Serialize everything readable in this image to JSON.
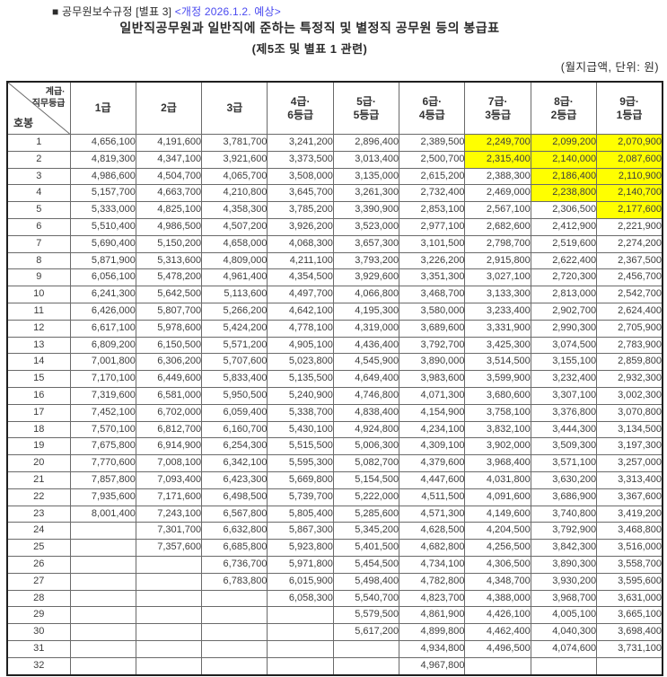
{
  "page": {
    "doc_label": "■ 공무원보수규정 [별표 3] ",
    "revision_note": "<개정 2026.1.2. 예상>",
    "title": "일반직공무원과 일반직에 준하는 특정직 및 별정직 공무원 등의 봉급표",
    "subtitle": "(제5조 및 별표 1 관련)",
    "unit_note": "(월지급액, 단위: 원)"
  },
  "colors": {
    "revision_blue": "#4a4af0",
    "highlight_yellow": "#ffff00",
    "grid_line": "#6a6a6a"
  },
  "table": {
    "corner_top_label": "계급·\n직무등급",
    "corner_bottom_label": "호봉",
    "columns": [
      "1급",
      "2급",
      "3급",
      "4급·\n6등급",
      "5급·\n5등급",
      "6급·\n4등급",
      "7급·\n3등급",
      "8급·\n2등급",
      "9급·\n1등급"
    ],
    "rows": [
      {
        "hobong": "1",
        "values": [
          "4,656,100",
          "4,191,600",
          "3,781,700",
          "3,241,200",
          "2,896,400",
          "2,389,500",
          "2,249,700",
          "2,099,200",
          "2,070,900"
        ],
        "highlight": [
          6,
          7,
          8
        ]
      },
      {
        "hobong": "2",
        "values": [
          "4,819,300",
          "4,347,100",
          "3,921,600",
          "3,373,500",
          "3,013,400",
          "2,500,700",
          "2,315,400",
          "2,140,000",
          "2,087,600"
        ],
        "highlight": [
          6,
          7,
          8
        ]
      },
      {
        "hobong": "3",
        "values": [
          "4,986,600",
          "4,504,700",
          "4,065,700",
          "3,508,000",
          "3,135,000",
          "2,615,200",
          "2,388,300",
          "2,186,400",
          "2,110,900"
        ],
        "highlight": [
          7,
          8
        ]
      },
      {
        "hobong": "4",
        "values": [
          "5,157,700",
          "4,663,700",
          "4,210,800",
          "3,645,700",
          "3,261,300",
          "2,732,400",
          "2,469,000",
          "2,238,800",
          "2,140,700"
        ],
        "highlight": [
          7,
          8
        ]
      },
      {
        "hobong": "5",
        "values": [
          "5,333,000",
          "4,825,100",
          "4,358,300",
          "3,785,200",
          "3,390,900",
          "2,853,100",
          "2,567,100",
          "2,306,500",
          "2,177,600"
        ],
        "highlight": [
          8
        ]
      },
      {
        "hobong": "6",
        "values": [
          "5,510,400",
          "4,986,500",
          "4,507,200",
          "3,926,200",
          "3,523,000",
          "2,977,100",
          "2,682,600",
          "2,412,900",
          "2,221,900"
        ],
        "highlight": []
      },
      {
        "hobong": "7",
        "values": [
          "5,690,400",
          "5,150,200",
          "4,658,000",
          "4,068,300",
          "3,657,300",
          "3,101,500",
          "2,798,700",
          "2,519,600",
          "2,274,200"
        ],
        "highlight": []
      },
      {
        "hobong": "8",
        "values": [
          "5,871,900",
          "5,313,600",
          "4,809,000",
          "4,211,100",
          "3,793,200",
          "3,226,200",
          "2,915,800",
          "2,622,400",
          "2,367,500"
        ],
        "highlight": []
      },
      {
        "hobong": "9",
        "values": [
          "6,056,100",
          "5,478,200",
          "4,961,400",
          "4,354,500",
          "3,929,600",
          "3,351,300",
          "3,027,100",
          "2,720,300",
          "2,456,700"
        ],
        "highlight": []
      },
      {
        "hobong": "10",
        "values": [
          "6,241,300",
          "5,642,500",
          "5,113,600",
          "4,497,700",
          "4,066,800",
          "3,468,700",
          "3,133,300",
          "2,813,000",
          "2,542,700"
        ],
        "highlight": []
      },
      {
        "hobong": "11",
        "values": [
          "6,426,000",
          "5,807,700",
          "5,266,200",
          "4,642,100",
          "4,195,300",
          "3,580,000",
          "3,233,400",
          "2,902,700",
          "2,624,400"
        ],
        "highlight": []
      },
      {
        "hobong": "12",
        "values": [
          "6,617,100",
          "5,978,600",
          "5,424,200",
          "4,778,100",
          "4,319,000",
          "3,689,600",
          "3,331,900",
          "2,990,300",
          "2,705,900"
        ],
        "highlight": []
      },
      {
        "hobong": "13",
        "values": [
          "6,809,200",
          "6,150,500",
          "5,571,200",
          "4,905,100",
          "4,436,400",
          "3,792,700",
          "3,425,300",
          "3,074,500",
          "2,783,900"
        ],
        "highlight": []
      },
      {
        "hobong": "14",
        "values": [
          "7,001,800",
          "6,306,200",
          "5,707,600",
          "5,023,800",
          "4,545,900",
          "3,890,000",
          "3,514,500",
          "3,155,100",
          "2,859,800"
        ],
        "highlight": []
      },
      {
        "hobong": "15",
        "values": [
          "7,170,100",
          "6,449,600",
          "5,833,400",
          "5,135,500",
          "4,649,400",
          "3,983,600",
          "3,599,900",
          "3,232,400",
          "2,932,300"
        ],
        "highlight": []
      },
      {
        "hobong": "16",
        "values": [
          "7,319,600",
          "6,581,000",
          "5,950,500",
          "5,240,900",
          "4,746,800",
          "4,071,300",
          "3,680,600",
          "3,307,100",
          "3,002,300"
        ],
        "highlight": []
      },
      {
        "hobong": "17",
        "values": [
          "7,452,100",
          "6,702,000",
          "6,059,400",
          "5,338,700",
          "4,838,400",
          "4,154,900",
          "3,758,100",
          "3,376,800",
          "3,070,800"
        ],
        "highlight": []
      },
      {
        "hobong": "18",
        "values": [
          "7,570,100",
          "6,812,700",
          "6,160,700",
          "5,430,100",
          "4,924,800",
          "4,234,100",
          "3,832,100",
          "3,444,300",
          "3,134,500"
        ],
        "highlight": []
      },
      {
        "hobong": "19",
        "values": [
          "7,675,800",
          "6,914,900",
          "6,254,300",
          "5,515,500",
          "5,006,300",
          "4,309,100",
          "3,902,000",
          "3,509,300",
          "3,197,300"
        ],
        "highlight": []
      },
      {
        "hobong": "20",
        "values": [
          "7,770,600",
          "7,008,100",
          "6,342,100",
          "5,595,300",
          "5,082,700",
          "4,379,600",
          "3,968,400",
          "3,571,100",
          "3,257,000"
        ],
        "highlight": []
      },
      {
        "hobong": "21",
        "values": [
          "7,857,800",
          "7,093,400",
          "6,423,300",
          "5,669,800",
          "5,154,500",
          "4,447,600",
          "4,031,800",
          "3,630,200",
          "3,313,400"
        ],
        "highlight": []
      },
      {
        "hobong": "22",
        "values": [
          "7,935,600",
          "7,171,600",
          "6,498,500",
          "5,739,700",
          "5,222,000",
          "4,511,500",
          "4,091,600",
          "3,686,900",
          "3,367,600"
        ],
        "highlight": []
      },
      {
        "hobong": "23",
        "values": [
          "8,001,400",
          "7,243,100",
          "6,567,800",
          "5,805,400",
          "5,285,600",
          "4,571,300",
          "4,149,600",
          "3,740,800",
          "3,419,200"
        ],
        "highlight": []
      },
      {
        "hobong": "24",
        "values": [
          "",
          "7,301,700",
          "6,632,800",
          "5,867,300",
          "5,345,200",
          "4,628,500",
          "4,204,500",
          "3,792,900",
          "3,468,800"
        ],
        "highlight": []
      },
      {
        "hobong": "25",
        "values": [
          "",
          "7,357,600",
          "6,685,800",
          "5,923,800",
          "5,401,500",
          "4,682,800",
          "4,256,500",
          "3,842,300",
          "3,516,000"
        ],
        "highlight": []
      },
      {
        "hobong": "26",
        "values": [
          "",
          "",
          "6,736,700",
          "5,971,800",
          "5,454,500",
          "4,734,100",
          "4,306,500",
          "3,890,300",
          "3,558,700"
        ],
        "highlight": []
      },
      {
        "hobong": "27",
        "values": [
          "",
          "",
          "6,783,800",
          "6,015,900",
          "5,498,400",
          "4,782,800",
          "4,348,700",
          "3,930,200",
          "3,595,600"
        ],
        "highlight": []
      },
      {
        "hobong": "28",
        "values": [
          "",
          "",
          "",
          "6,058,300",
          "5,540,700",
          "4,823,700",
          "4,388,000",
          "3,968,700",
          "3,631,000"
        ],
        "highlight": []
      },
      {
        "hobong": "29",
        "values": [
          "",
          "",
          "",
          "",
          "5,579,500",
          "4,861,900",
          "4,426,100",
          "4,005,100",
          "3,665,100"
        ],
        "highlight": []
      },
      {
        "hobong": "30",
        "values": [
          "",
          "",
          "",
          "",
          "5,617,200",
          "4,899,800",
          "4,462,400",
          "4,040,300",
          "3,698,400"
        ],
        "highlight": []
      },
      {
        "hobong": "31",
        "values": [
          "",
          "",
          "",
          "",
          "",
          "4,934,800",
          "4,496,500",
          "4,074,600",
          "3,731,100"
        ],
        "highlight": []
      },
      {
        "hobong": "32",
        "values": [
          "",
          "",
          "",
          "",
          "",
          "4,967,800",
          "",
          "",
          ""
        ],
        "highlight": []
      }
    ]
  }
}
